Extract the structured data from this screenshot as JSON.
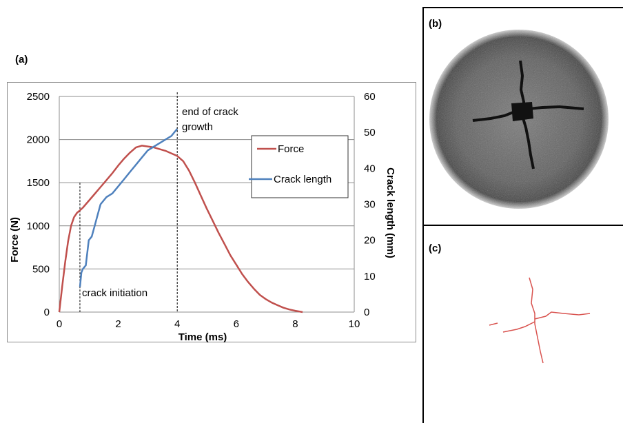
{
  "figure": {
    "panel_a_label": "(a)",
    "panel_b_label": "(b)",
    "panel_c_label": "(c)"
  },
  "chart_data": {
    "type": "line",
    "xlabel": "Time (ms)",
    "ylabel_left": "Force (N)",
    "ylabel_right": "Crack length (mm)",
    "xlim": [
      0,
      10
    ],
    "ylim_left": [
      0,
      2500
    ],
    "ylim_right": [
      0,
      60
    ],
    "x_ticks": [
      "0",
      "2",
      "4",
      "6",
      "8",
      "10"
    ],
    "y_left_ticks": [
      "0",
      "500",
      "1000",
      "1500",
      "2000",
      "2500"
    ],
    "y_right_ticks": [
      "0",
      "10",
      "20",
      "30",
      "40",
      "50",
      "60"
    ],
    "grid": true,
    "legend_position": "right",
    "series": [
      {
        "name": "Force",
        "axis": "left",
        "color": "#c0504d",
        "x": [
          0.0,
          0.1,
          0.2,
          0.3,
          0.4,
          0.5,
          0.6,
          0.7,
          0.8,
          1.0,
          1.2,
          1.4,
          1.6,
          1.8,
          2.0,
          2.2,
          2.4,
          2.6,
          2.8,
          3.0,
          3.2,
          3.4,
          3.6,
          3.8,
          4.0,
          4.2,
          4.4,
          4.6,
          4.8,
          5.0,
          5.2,
          5.4,
          5.6,
          5.8,
          6.0,
          6.2,
          6.4,
          6.6,
          6.8,
          7.0,
          7.2,
          7.4,
          7.6,
          7.8,
          8.0,
          8.2,
          8.25
        ],
        "values": [
          0,
          300,
          580,
          820,
          1000,
          1100,
          1150,
          1180,
          1210,
          1290,
          1370,
          1450,
          1530,
          1610,
          1700,
          1780,
          1850,
          1910,
          1930,
          1920,
          1910,
          1890,
          1870,
          1840,
          1810,
          1750,
          1640,
          1500,
          1350,
          1200,
          1060,
          920,
          790,
          660,
          550,
          440,
          350,
          270,
          200,
          150,
          110,
          80,
          50,
          30,
          15,
          3,
          0
        ]
      },
      {
        "name": "Crack length",
        "axis": "right",
        "color": "#4f81bd",
        "x": [
          0.7,
          0.75,
          0.8,
          0.9,
          1.0,
          1.1,
          1.2,
          1.3,
          1.4,
          1.6,
          1.8,
          2.0,
          2.2,
          2.4,
          2.6,
          2.8,
          3.0,
          3.2,
          3.4,
          3.6,
          3.8,
          4.0
        ],
        "values": [
          7,
          11,
          12,
          13,
          20,
          21,
          24,
          27,
          30,
          32,
          33,
          35,
          37,
          39,
          41,
          43,
          45,
          46,
          47,
          48,
          49,
          51
        ]
      }
    ],
    "annotations": [
      {
        "text": "crack initiation",
        "x": 0.7
      },
      {
        "text_line1": "end of crack",
        "text_line2": "growth",
        "x": 4.0
      }
    ]
  }
}
